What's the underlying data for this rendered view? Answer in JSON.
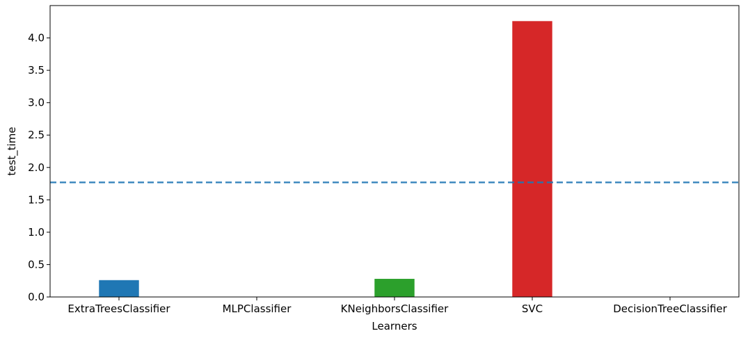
{
  "chart_data": {
    "type": "bar",
    "title": "",
    "xlabel": "Learners",
    "ylabel": "test_time",
    "categories": [
      "ExtraTreesClassifier",
      "MLPClassifier",
      "KNeighborsClassifier",
      "SVC",
      "DecisionTreeClassifier"
    ],
    "values": [
      0.26,
      0.003,
      0.28,
      4.26,
      0.002
    ],
    "colors": [
      "#1f77b4",
      "#ff7f0e",
      "#2ca02c",
      "#d62728",
      "#9467bd"
    ],
    "ylim": [
      0,
      4.5
    ],
    "yticks": [
      "0.0",
      "0.5",
      "1.0",
      "1.5",
      "2.0",
      "2.5",
      "3.0",
      "3.5",
      "4.0"
    ],
    "reference_line": {
      "y": 1.77,
      "style": "dashed",
      "color": "#1f77b4"
    },
    "grid": false,
    "legend": "none"
  }
}
